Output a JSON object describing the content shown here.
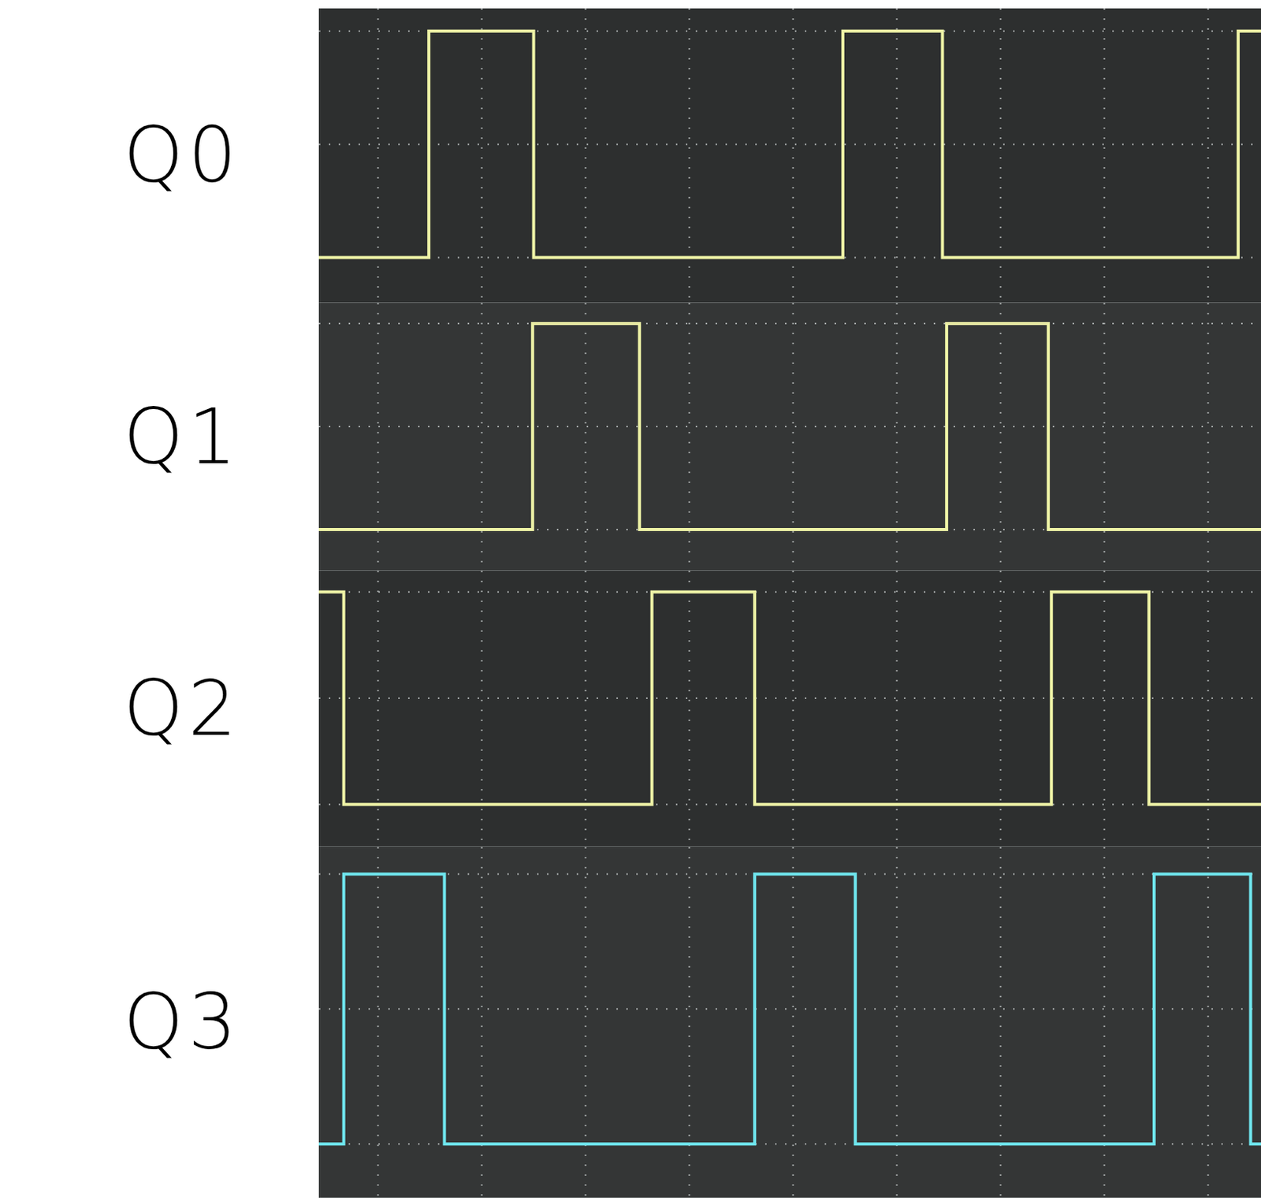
{
  "chart_data": [
    {
      "type": "line",
      "title": "Q0",
      "color": "#eef3a6",
      "grid": true,
      "tick_labels": false,
      "xlim": [
        0.43,
        9.51
      ],
      "ylim": [
        -0.2,
        1.1
      ],
      "xticks": [
        1,
        2,
        3,
        4,
        5,
        6,
        7,
        8,
        9
      ],
      "yticks": [
        0,
        0.5,
        1
      ],
      "x": [
        0.43,
        1.49,
        2.5,
        5.48,
        6.44,
        9.29,
        9.51
      ],
      "values": [
        0,
        1,
        0,
        1,
        0,
        1,
        1
      ]
    },
    {
      "type": "line",
      "title": "Q1",
      "color": "#eef3a6",
      "grid": true,
      "tick_labels": false,
      "xlim": [
        0.43,
        9.51
      ],
      "ylim": [
        -0.2,
        1.1
      ],
      "xticks": [
        1,
        2,
        3,
        4,
        5,
        6,
        7,
        8,
        9
      ],
      "yticks": [
        0,
        0.5,
        1
      ],
      "x": [
        0.43,
        2.49,
        3.52,
        6.48,
        7.46,
        9.51
      ],
      "values": [
        0,
        1,
        0,
        1,
        0,
        0
      ]
    },
    {
      "type": "line",
      "title": "Q2",
      "color": "#eef3a6",
      "grid": true,
      "tick_labels": false,
      "xlim": [
        0.43,
        9.51
      ],
      "ylim": [
        -0.2,
        1.1
      ],
      "xticks": [
        1,
        2,
        3,
        4,
        5,
        6,
        7,
        8,
        9
      ],
      "yticks": [
        0,
        0.5,
        1
      ],
      "x": [
        0.43,
        0.67,
        3.64,
        4.63,
        7.49,
        8.43,
        9.51
      ],
      "values": [
        1,
        0,
        1,
        0,
        1,
        0,
        0
      ]
    },
    {
      "type": "line",
      "title": "Q3",
      "color": "#6fe6ee",
      "grid": true,
      "tick_labels": false,
      "xlim": [
        0.43,
        9.51
      ],
      "ylim": [
        -0.2,
        1.1
      ],
      "xticks": [
        1,
        2,
        3,
        4,
        5,
        6,
        7,
        8,
        9
      ],
      "yticks": [
        0,
        0.5,
        1
      ],
      "x": [
        0.43,
        0.67,
        1.64,
        4.63,
        5.6,
        8.48,
        9.41,
        9.51
      ],
      "values": [
        0,
        1,
        0,
        1,
        0,
        1,
        0,
        0
      ]
    }
  ]
}
